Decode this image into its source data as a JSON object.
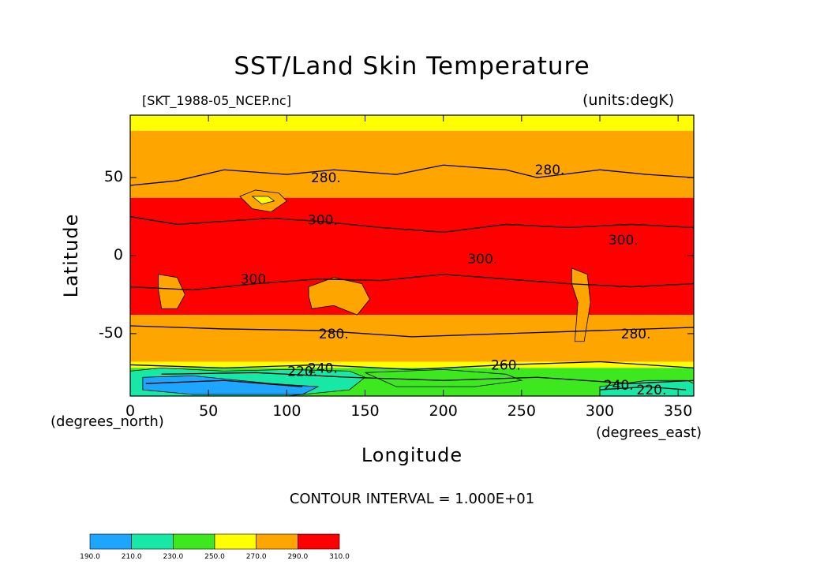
{
  "title": "SST/Land Skin Temperature",
  "file_label": "[SKT_1988-05_NCEP.nc]",
  "units_label": "(units:degK)",
  "x_axis": {
    "label": "Longitude",
    "unit_label": "(degrees_east)",
    "ticks": [
      0,
      50,
      100,
      150,
      200,
      250,
      300,
      350
    ],
    "range": [
      0,
      360
    ]
  },
  "y_axis": {
    "label": "Latitude",
    "unit_label": "(degrees_north)",
    "ticks": [
      50,
      0,
      -50
    ],
    "range": [
      -90,
      90
    ]
  },
  "contour_interval": "CONTOUR INTERVAL = 1.000E+01",
  "contour_labels": [
    "280.",
    "280.",
    "300.",
    "300.",
    "300.",
    "300.",
    "280.",
    "280.",
    "260.",
    "240.",
    "220.",
    "240.",
    "220."
  ],
  "colorbar": {
    "levels": [
      "190.0",
      "210.0",
      "230.0",
      "250.0",
      "270.0",
      "290.0",
      "310.0"
    ],
    "colors": [
      "#1ea6ff",
      "#17e8a6",
      "#3ee81e",
      "#ffff00",
      "#ffa500",
      "#ff0000"
    ]
  },
  "bands": [
    {
      "from": 90,
      "to": 80,
      "color": "#ffff00"
    },
    {
      "from": 80,
      "to": 37,
      "color": "#ffa500"
    },
    {
      "from": 37,
      "to": -38,
      "color": "#ff0000"
    },
    {
      "from": -38,
      "to": -68,
      "color": "#ffa500"
    },
    {
      "from": -68,
      "to": -72,
      "color": "#ffff00"
    },
    {
      "from": -72,
      "to": -90,
      "color": "#3ee81e"
    }
  ]
}
